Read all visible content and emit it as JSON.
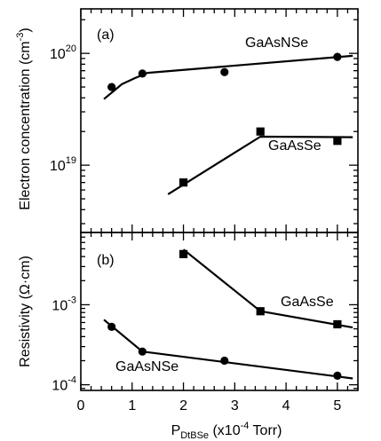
{
  "chart_data": [
    {
      "type": "scatter",
      "panel_label": "(a)",
      "ylabel": "Electron concentration (cm",
      "ylabel_sup": "-3",
      "ylabel_close": ")",
      "yscale": "log",
      "ylim": [
        2.5e+18,
        2.5e+20
      ],
      "xlim": [
        0,
        5.4
      ],
      "ytick_labels": [
        {
          "value": 1e+20,
          "base": "10",
          "exp": "20"
        },
        {
          "value": 1e+19,
          "base": "10",
          "exp": "19"
        }
      ],
      "series": [
        {
          "name": "GaAsNSe",
          "marker": "circle",
          "x": [
            0.6,
            1.2,
            2.8,
            5.0
          ],
          "y": [
            5e+19,
            6.6e+19,
            6.8e+19,
            9.3e+19
          ],
          "fit": [
            [
              0.45,
              3.9e+19
            ],
            [
              0.8,
              5.3e+19
            ],
            [
              1.05,
              6e+19
            ],
            [
              1.3,
              6.7e+19
            ],
            [
              5.3,
              9.5e+19
            ]
          ]
        },
        {
          "name": "GaAsSe",
          "marker": "square",
          "x": [
            2.0,
            3.5,
            5.0
          ],
          "y": [
            7e+18,
            2e+19,
            1.65e+19
          ],
          "fit": [
            [
              1.7,
              5.5e+18
            ],
            [
              3.5,
              1.8e+19
            ],
            [
              5.3,
              1.78e+19
            ]
          ]
        }
      ]
    },
    {
      "type": "scatter",
      "panel_label": "(b)",
      "ylabel": "Resistivity (Ω·cm)",
      "yscale": "log",
      "ylim": [
        8.5e-05,
        0.008
      ],
      "xlim": [
        0,
        5.4
      ],
      "ytick_labels": [
        {
          "value": 0.001,
          "base": "10",
          "exp": "-3"
        },
        {
          "value": 0.0001,
          "base": "10",
          "exp": "-4"
        }
      ],
      "xticks": [
        0,
        1,
        2,
        3,
        4,
        5
      ],
      "xtick_labels": [
        "0",
        "1",
        "2",
        "3",
        "4",
        "5"
      ],
      "xlabel": {
        "base": "P",
        "sub": "DtBSe",
        "pre": " (x10",
        "sup": "-4",
        "post": " Torr)"
      },
      "series": [
        {
          "name": "GaAsSe",
          "marker": "square",
          "x": [
            2.0,
            3.5,
            5.0
          ],
          "y": [
            0.0043,
            0.00083,
            0.00057
          ],
          "fit": [
            [
              2.0,
              0.0049
            ],
            [
              3.5,
              0.00083
            ],
            [
              5.3,
              0.00052
            ]
          ]
        },
        {
          "name": "GaAsNSe",
          "marker": "circle",
          "x": [
            0.6,
            1.2,
            2.8,
            5.0
          ],
          "y": [
            0.00053,
            0.00026,
            0.0002,
            0.00013
          ],
          "fit": [
            [
              0.45,
              0.00065
            ],
            [
              1.2,
              0.00026
            ],
            [
              5.3,
              0.00012
            ]
          ]
        }
      ]
    }
  ]
}
